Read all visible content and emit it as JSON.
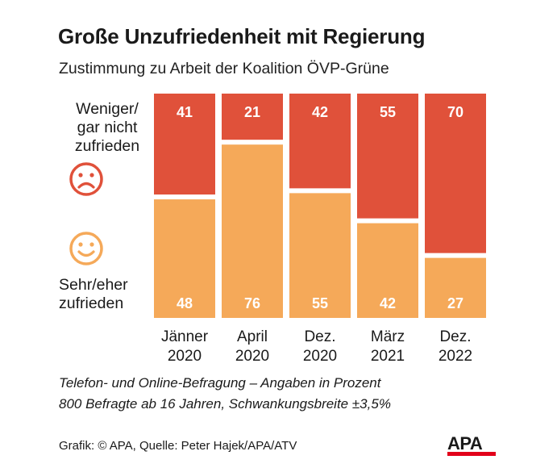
{
  "title": "Große Unzufriedenheit mit Regierung",
  "subtitle": "Zustimmung zu Arbeit der Koalition ÖVP-Grüne",
  "legend": {
    "negative_lines": [
      "Weniger/",
      "gar nicht",
      "zufrieden"
    ],
    "positive_lines": [
      "Sehr/eher",
      "zufrieden"
    ],
    "negative_icon": "sad-face-icon",
    "positive_icon": "happy-face-icon"
  },
  "chart_data": {
    "type": "bar",
    "stacked": true,
    "categories": [
      [
        "Jänner",
        "2020"
      ],
      [
        "April",
        "2020"
      ],
      [
        "Dez.",
        "2020"
      ],
      [
        "März",
        "2021"
      ],
      [
        "Dez.",
        "2022"
      ]
    ],
    "series": [
      {
        "name": "Weniger/gar nicht zufrieden",
        "values": [
          41,
          21,
          42,
          55,
          70
        ],
        "color": "#e0513a"
      },
      {
        "name": "Sehr/eher zufrieden",
        "values": [
          48,
          76,
          55,
          42,
          27
        ],
        "color": "#f5a959"
      }
    ],
    "ylim": [
      0,
      100
    ],
    "grid": false,
    "legend_placement": "left",
    "xlabel": "",
    "ylabel": ""
  },
  "footnote": {
    "line1": "Telefon- und Online-Befragung – Angaben in Prozent",
    "line2": "800 Befragte ab 16 Jahren, Schwankungsbreite ±3,5%"
  },
  "credit": "Grafik: © APA, Quelle: Peter Hajek/APA/ATV",
  "logo": {
    "text": "APA",
    "color": "#e2001a"
  },
  "colors": {
    "negative": "#e0513a",
    "positive": "#f5a959",
    "face": "#e0513a",
    "face_happy": "#f5a959"
  }
}
